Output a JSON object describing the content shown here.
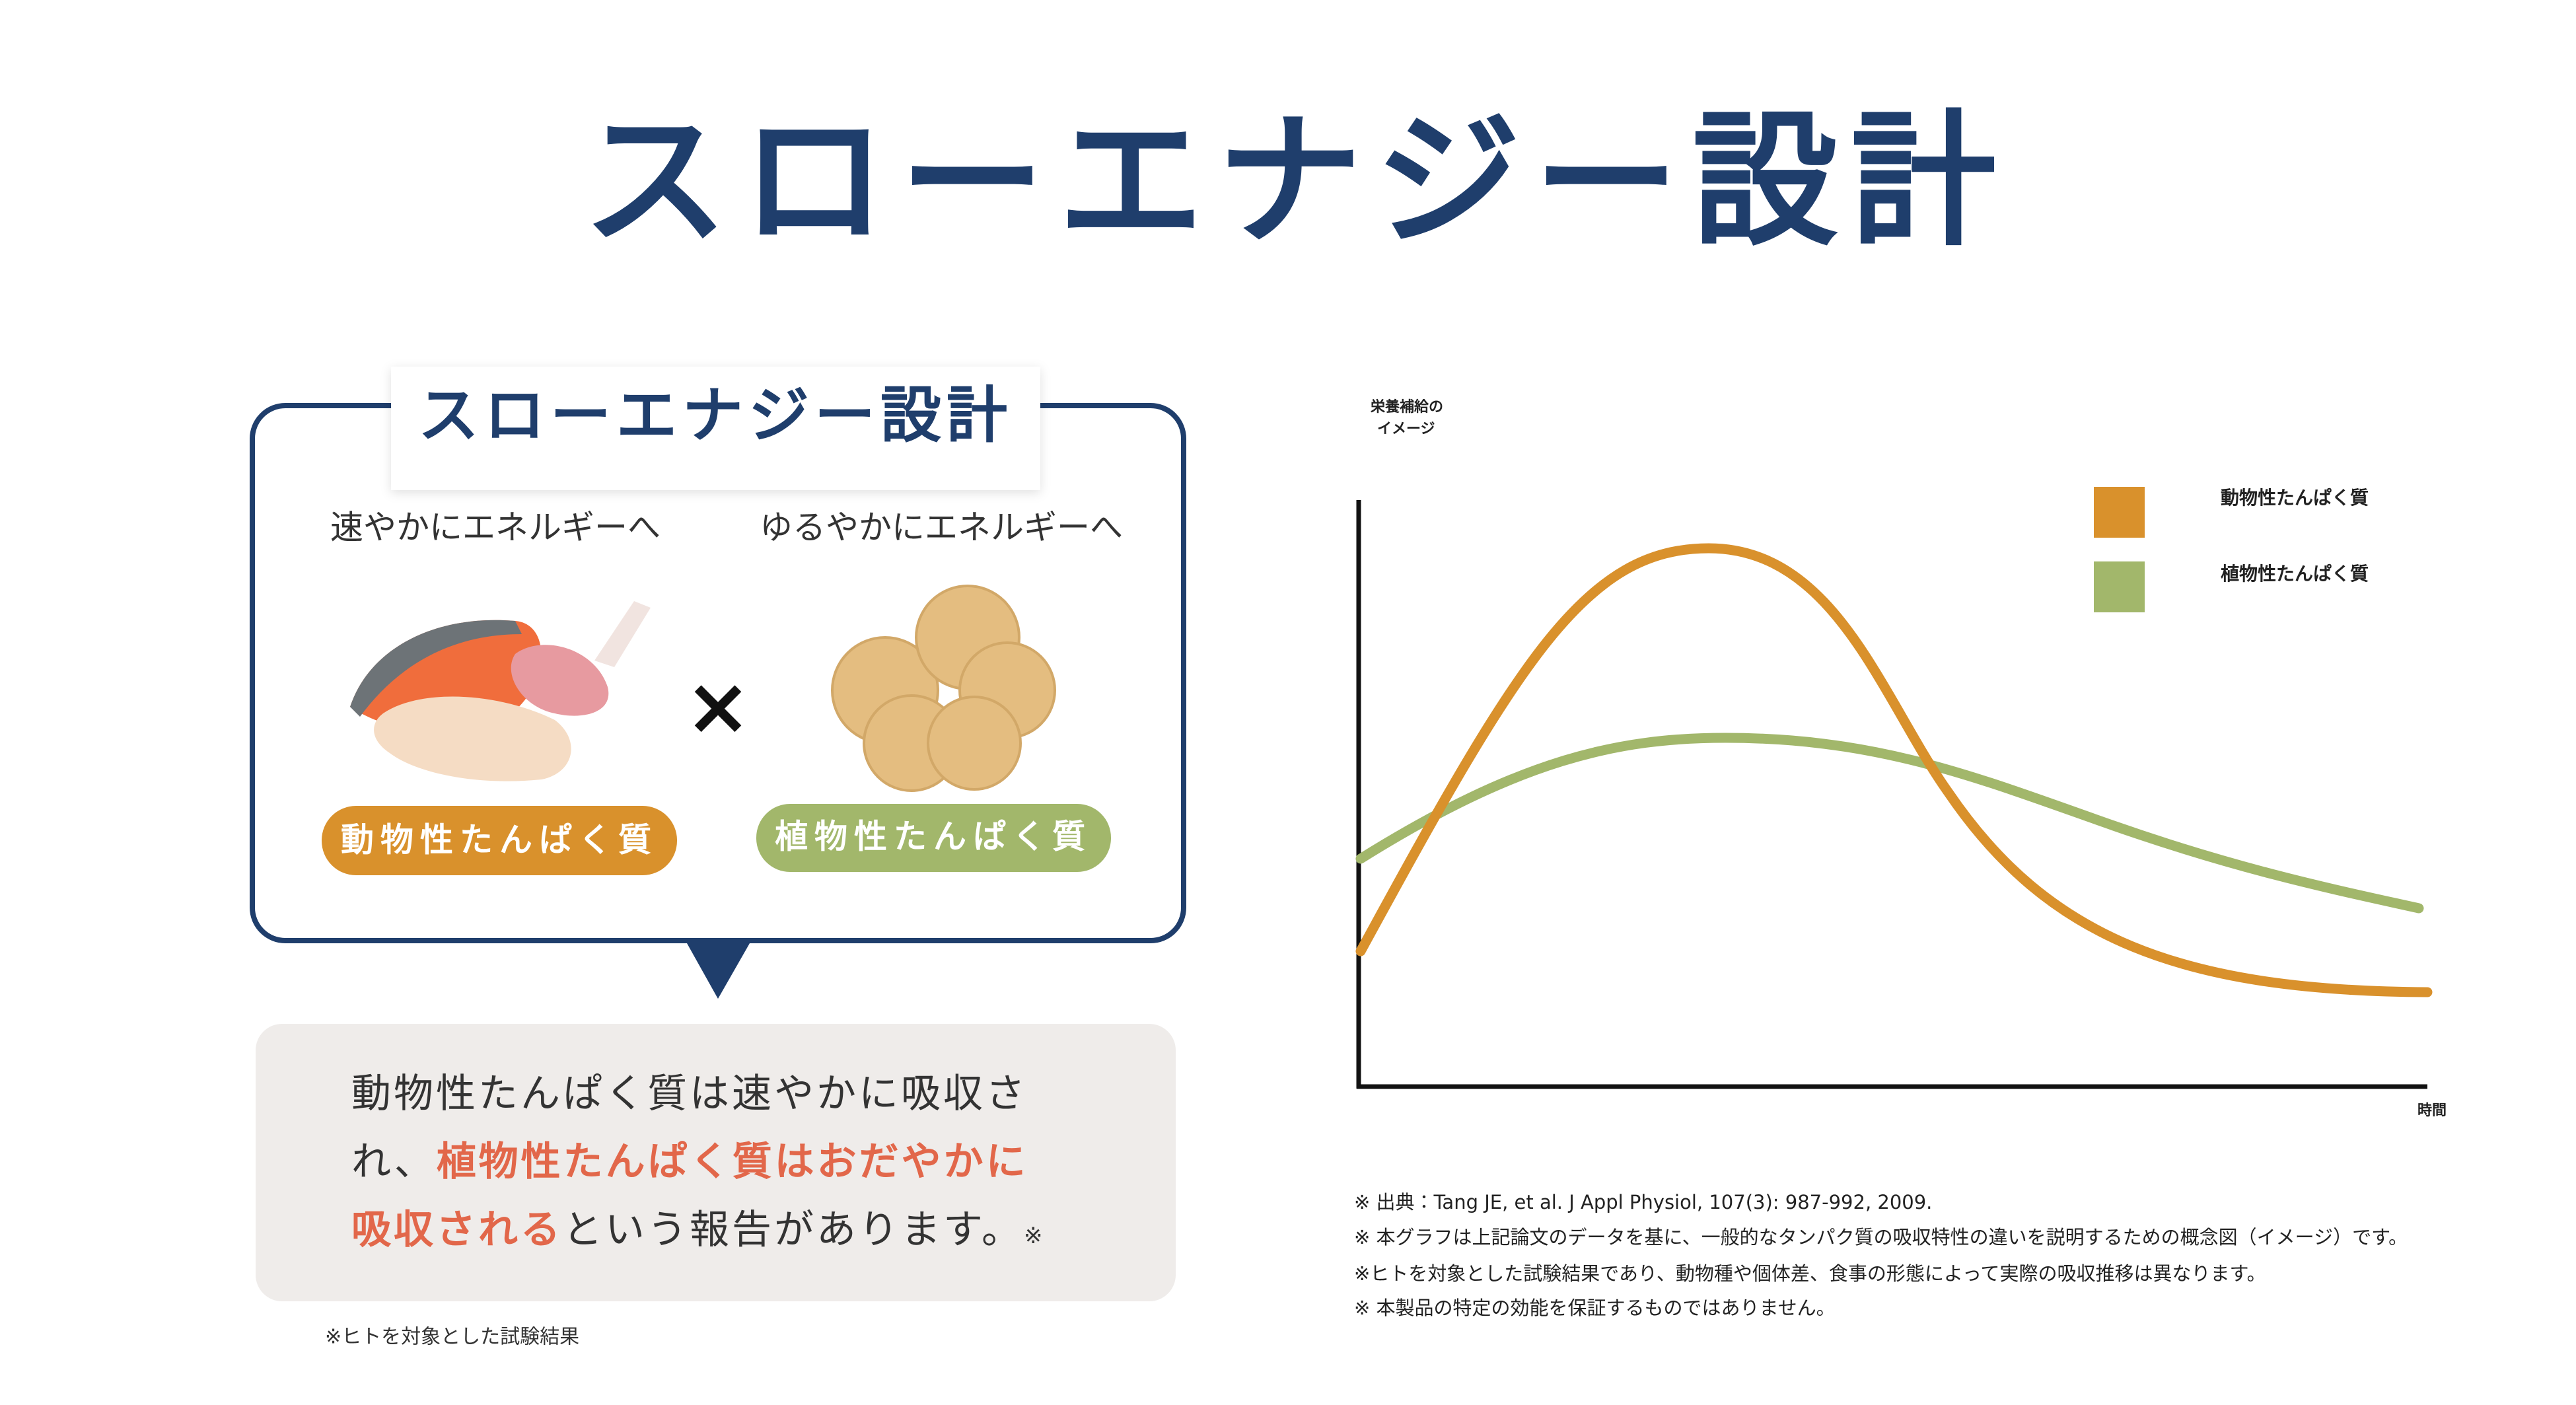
{
  "title": "スローエナジー設計",
  "panel": {
    "label": "スローエナジー設計",
    "left_caption": "速やかにエネルギーへ",
    "right_caption": "ゆるやかにエネルギーへ",
    "cross": "×",
    "left_pill": {
      "text": "動物性たんぱく質",
      "color": "#d9912c"
    },
    "right_pill": {
      "text": "植物性たんぱく質",
      "color": "#a2b76b"
    }
  },
  "summary": {
    "lines": [
      [
        {
          "text": "動物性たんぱく質は速やかに吸収さ",
          "highlight": false
        }
      ],
      [
        {
          "text": "れ、",
          "highlight": false
        },
        {
          "text": "植物性たんぱく質はおだやかに",
          "highlight": true
        }
      ],
      [
        {
          "text": "吸収される",
          "highlight": true
        },
        {
          "text": "という報告があります。",
          "highlight": false
        },
        {
          "text": "※",
          "highlight": false,
          "small": true
        }
      ]
    ],
    "highlight_color": "#e2674a"
  },
  "footnote": "※ヒトを対象とした試験結果",
  "chart": {
    "y_label": [
      "栄養補給の",
      "イメージ"
    ],
    "x_label": "時間",
    "series": [
      {
        "name": "動物性たんぱく質",
        "color": "#d9912c"
      },
      {
        "name": "植物性たんぱく質",
        "color": "#a2b76b"
      }
    ],
    "notes": [
      "※ 出典：Tang JE, et al. J Appl Physiol, 107(3): 987-992, 2009.",
      "※ 本グラフは上記論文のデータを基に、一般的なタンパク質の吸収特性の違いを説明するための概念図（イメージ）です。",
      "※ヒトを対象とした試験結果であり、動物種や個体差、食事の形態によって実際の吸収推移は異なります。",
      "※ 本製品の特定の効能を保証するものではありません。"
    ]
  }
}
